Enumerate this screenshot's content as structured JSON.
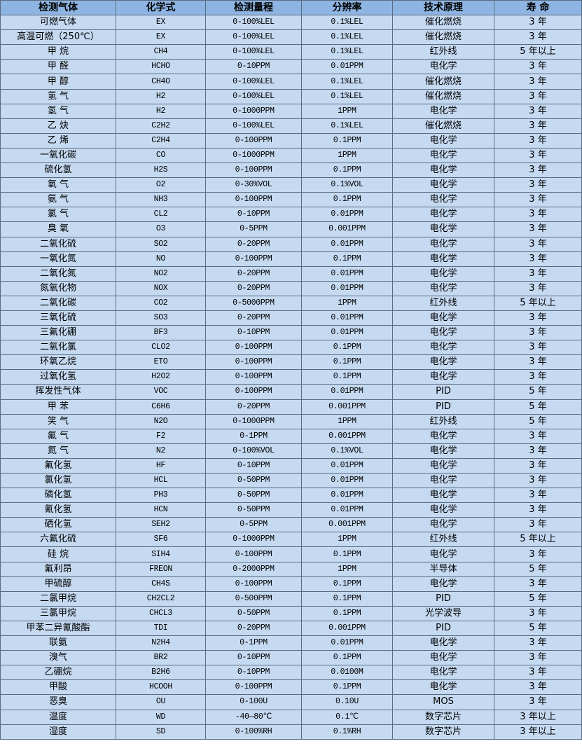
{
  "table": {
    "headers": [
      "检测气体",
      "化学式",
      "检测量程",
      "分辨率",
      "技术原理",
      "寿 命"
    ],
    "rows": [
      [
        "可燃气体",
        "EX",
        "0-100%LEL",
        "0.1%LEL",
        "催化燃烧",
        "3 年"
      ],
      [
        "高温可燃（250℃）",
        "EX",
        "0-100%LEL",
        "0.1%LEL",
        "催化燃烧",
        "3 年"
      ],
      [
        "甲 烷",
        "CH4",
        "0-100%LEL",
        "0.1%LEL",
        "红外线",
        "5 年以上"
      ],
      [
        "甲 醛",
        "HCHO",
        "0-10PPM",
        "0.01PPM",
        "电化学",
        "3 年"
      ],
      [
        "甲 醇",
        "CH4O",
        "0-100%LEL",
        "0.1%LEL",
        "催化燃烧",
        "3 年"
      ],
      [
        "氢 气",
        "H2",
        "0-100%LEL",
        "0.1%LEL",
        "催化燃烧",
        "3 年"
      ],
      [
        "氢 气",
        "H2",
        "0-1000PPM",
        "1PPM",
        "电化学",
        "3 年"
      ],
      [
        "乙 炔",
        "C2H2",
        "0-100%LEL",
        "0.1%LEL",
        "催化燃烧",
        "3 年"
      ],
      [
        "乙 烯",
        "C2H4",
        "0-100PPM",
        "0.1PPM",
        "电化学",
        "3 年"
      ],
      [
        "一氧化碳",
        "CO",
        "0-1000PPM",
        "1PPM",
        "电化学",
        "3 年"
      ],
      [
        "硫化氢",
        "H2S",
        "0-100PPM",
        "0.1PPM",
        "电化学",
        "3 年"
      ],
      [
        "氧 气",
        "O2",
        "0-30%VOL",
        "0.1%VOL",
        "电化学",
        "3 年"
      ],
      [
        "氨 气",
        "NH3",
        "0-100PPM",
        "0.1PPM",
        "电化学",
        "3 年"
      ],
      [
        "氯 气",
        "CL2",
        "0-10PPM",
        "0.01PPM",
        "电化学",
        "3 年"
      ],
      [
        "臭 氧",
        "O3",
        "0-5PPM",
        "0.001PPM",
        "电化学",
        "3 年"
      ],
      [
        "二氧化硫",
        "SO2",
        "0-20PPM",
        "0.01PPM",
        "电化学",
        "3 年"
      ],
      [
        "一氧化氮",
        "NO",
        "0-100PPM",
        "0.1PPM",
        "电化学",
        "3 年"
      ],
      [
        "二氧化氮",
        "NO2",
        "0-20PPM",
        "0.01PPM",
        "电化学",
        "3 年"
      ],
      [
        "氮氧化物",
        "NOX",
        "0-20PPM",
        "0.01PPM",
        "电化学",
        "3 年"
      ],
      [
        "二氧化碳",
        "CO2",
        "0-5000PPM",
        "1PPM",
        "红外线",
        "5 年以上"
      ],
      [
        "三氧化硫",
        "SO3",
        "0-20PPM",
        "0.01PPM",
        "电化学",
        "3 年"
      ],
      [
        "三氟化硼",
        "BF3",
        "0-10PPM",
        "0.01PPM",
        "电化学",
        "3 年"
      ],
      [
        "二氧化氯",
        "CLO2",
        "0-100PPM",
        "0.1PPM",
        "电化学",
        "3 年"
      ],
      [
        "环氧乙烷",
        "ETO",
        "0-100PPM",
        "0.1PPM",
        "电化学",
        "3 年"
      ],
      [
        "过氧化氢",
        "H2O2",
        "0-100PPM",
        "0.1PPM",
        "电化学",
        "3 年"
      ],
      [
        "挥发性气体",
        "VOC",
        "0-100PPM",
        "0.01PPM",
        "PID",
        "5 年"
      ],
      [
        "甲 苯",
        "C6H6",
        "0-20PPM",
        "0.001PPM",
        "PID",
        "5 年"
      ],
      [
        "笑 气",
        "N2O",
        "0-1000PPM",
        "1PPM",
        "红外线",
        "5 年"
      ],
      [
        "氟 气",
        "F2",
        "0-1PPM",
        "0.001PPM",
        "电化学",
        "3 年"
      ],
      [
        "氮 气",
        "N2",
        "0-100%VOL",
        "0.1%VOL",
        "电化学",
        "3 年"
      ],
      [
        "氟化氢",
        "HF",
        "0-10PPM",
        "0.01PPM",
        "电化学",
        "3 年"
      ],
      [
        "氯化氢",
        "HCL",
        "0-50PPM",
        "0.01PPM",
        "电化学",
        "3 年"
      ],
      [
        "磷化氢",
        "PH3",
        "0-50PPM",
        "0.01PPM",
        "电化学",
        "3 年"
      ],
      [
        "氰化氢",
        "HCN",
        "0-50PPM",
        "0.01PPM",
        "电化学",
        "3 年"
      ],
      [
        "硒化氢",
        "SEH2",
        "0-5PPM",
        "0.001PPM",
        "电化学",
        "3 年"
      ],
      [
        "六氟化硫",
        "SF6",
        "0-1000PPM",
        "1PPM",
        "红外线",
        "5 年以上"
      ],
      [
        "硅 烷",
        "SIH4",
        "0-100PPM",
        "0.1PPM",
        "电化学",
        "3 年"
      ],
      [
        "氟利昂",
        "FREON",
        "0-2000PPM",
        "1PPM",
        "半导体",
        "5 年"
      ],
      [
        "甲硫醇",
        "CH4S",
        "0-100PPM",
        "0.1PPM",
        "电化学",
        "3 年"
      ],
      [
        "二氯甲烷",
        "CH2CL2",
        "0-500PPM",
        "0.1PPM",
        "PID",
        "5 年"
      ],
      [
        "三氯甲烷",
        "CHCL3",
        "0-50PPM",
        "0.1PPM",
        "光学波导",
        "3 年"
      ],
      [
        "甲苯二异氰酸酯",
        "TDI",
        "0-20PPM",
        "0.001PPM",
        "PID",
        "5 年"
      ],
      [
        "联氨",
        "N2H4",
        "0-1PPM",
        "0.01PPM",
        "电化学",
        "3 年"
      ],
      [
        "溴气",
        "BR2",
        "0-10PPM",
        "0.1PPM",
        "电化学",
        "3 年"
      ],
      [
        "乙硼烷",
        "B2H6",
        "0-10PPM",
        "0.0100M",
        "电化学",
        "3 年"
      ],
      [
        "甲酸",
        "HCOOH",
        "0-100PPM",
        "0.1PPM",
        "电化学",
        "3 年"
      ],
      [
        "恶臭",
        "OU",
        "0-100U",
        "0.10U",
        "MOS",
        "3 年"
      ],
      [
        "温度",
        "WD",
        "-40—80℃",
        "0.1℃",
        "数字芯片",
        "3 年以上"
      ],
      [
        "湿度",
        "SD",
        "0-100%RH",
        "0.1%RH",
        "数字芯片",
        "3 年以上"
      ]
    ]
  },
  "colors": {
    "header_bg": "#8db4e2",
    "row_bg": "#c5d9f1",
    "border": "#5a6b80"
  }
}
